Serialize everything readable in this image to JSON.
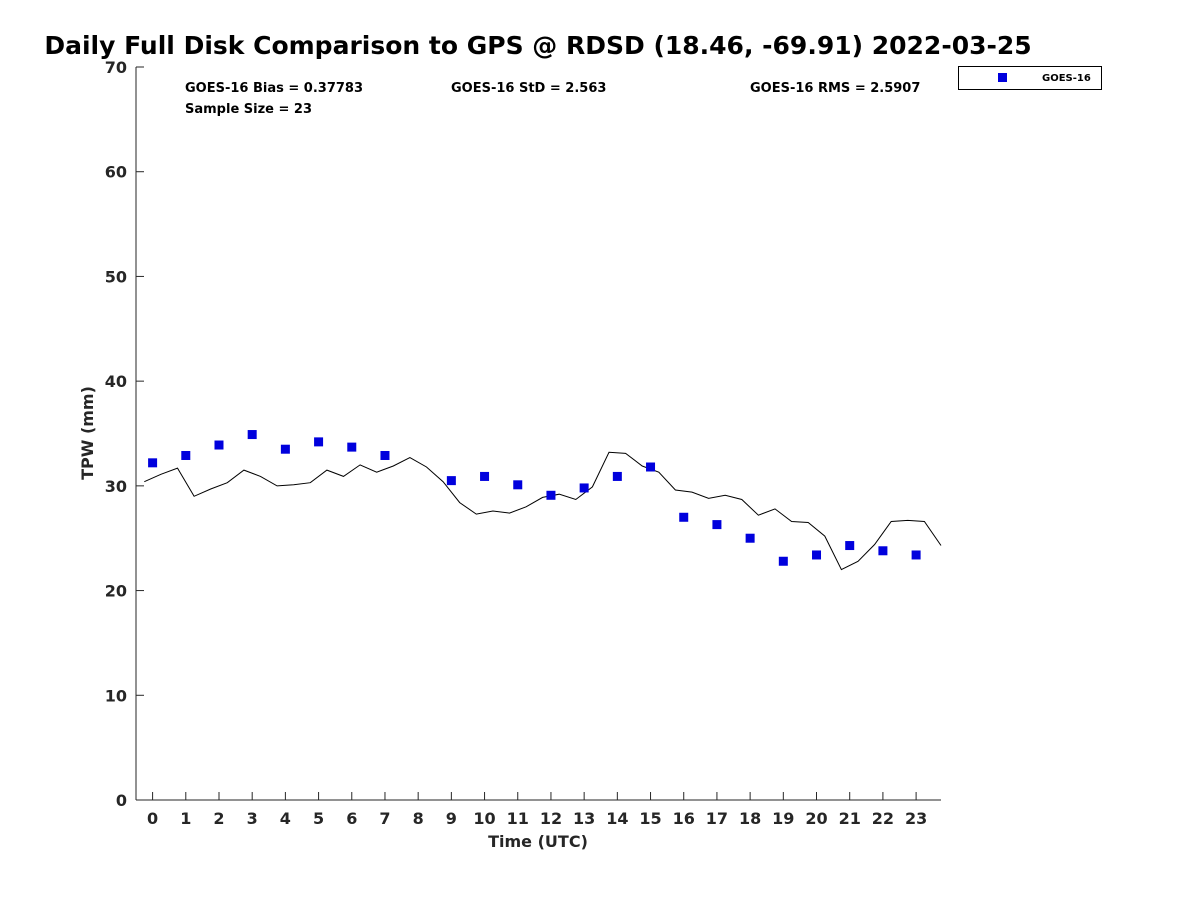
{
  "chart_data": {
    "type": "scatter",
    "title": "Daily Full Disk Comparison to GPS @ RDSD (18.46, -69.91) 2022-03-25",
    "xlabel": "Time (UTC)",
    "ylabel": "TPW (mm)",
    "xlim": [
      -0.5,
      23.75
    ],
    "ylim": [
      0,
      70
    ],
    "x_ticks": [
      0,
      1,
      2,
      3,
      4,
      5,
      6,
      7,
      8,
      9,
      10,
      11,
      12,
      13,
      14,
      15,
      16,
      17,
      18,
      19,
      20,
      21,
      22,
      23
    ],
    "y_ticks": [
      0,
      10,
      20,
      30,
      40,
      50,
      60,
      70
    ],
    "grid": false,
    "legend_placement": "outside-top-right",
    "stats": {
      "bias": "GOES-16 Bias = 0.37783",
      "std": "GOES-16 StD = 2.563",
      "rms": "GOES-16 RMS = 2.5907",
      "sample": "Sample Size = 23"
    },
    "series": [
      {
        "name": "GOES-16",
        "type": "scatter",
        "marker": "square",
        "color": "#0000dd",
        "x": [
          0,
          1,
          2,
          3,
          4,
          5,
          6,
          7,
          9,
          10,
          11,
          12,
          13,
          14,
          15,
          16,
          17,
          18,
          19,
          20,
          21,
          22,
          23
        ],
        "y": [
          32.2,
          32.9,
          33.9,
          34.9,
          33.5,
          34.2,
          33.7,
          32.9,
          30.5,
          30.9,
          30.1,
          29.1,
          29.8,
          30.9,
          31.8,
          27.0,
          26.3,
          25.0,
          22.8,
          23.4,
          24.3,
          23.8,
          23.4
        ]
      },
      {
        "type": "line",
        "color": "#000000",
        "x": [
          -0.25,
          0.25,
          0.75,
          1.25,
          1.75,
          2.25,
          2.75,
          3.25,
          3.75,
          4.25,
          4.75,
          5.25,
          5.75,
          6.25,
          6.75,
          7.25,
          7.75,
          8.25,
          8.75,
          9.25,
          9.75,
          10.25,
          10.75,
          11.25,
          11.75,
          12.25,
          12.75,
          13.25,
          13.75,
          14.25,
          14.75,
          15.25,
          15.75,
          16.25,
          16.75,
          17.25,
          17.75,
          18.25,
          18.75,
          19.25,
          19.75,
          20.25,
          20.75,
          21.25,
          21.75,
          22.25,
          22.75,
          23.25,
          23.75
        ],
        "y": [
          30.4,
          31.1,
          31.7,
          29.0,
          29.7,
          30.3,
          31.5,
          30.9,
          30.0,
          30.1,
          30.3,
          31.5,
          30.9,
          32.0,
          31.3,
          31.9,
          32.7,
          31.8,
          30.4,
          28.4,
          27.3,
          27.6,
          27.4,
          28.0,
          28.9,
          29.2,
          28.7,
          29.9,
          33.2,
          33.1,
          31.9,
          31.3,
          29.6,
          29.4,
          28.8,
          29.1,
          28.7,
          27.2,
          27.8,
          26.6,
          26.5,
          25.2,
          22.0,
          22.8,
          24.4,
          26.6,
          26.7,
          26.6,
          24.3
        ]
      }
    ]
  }
}
